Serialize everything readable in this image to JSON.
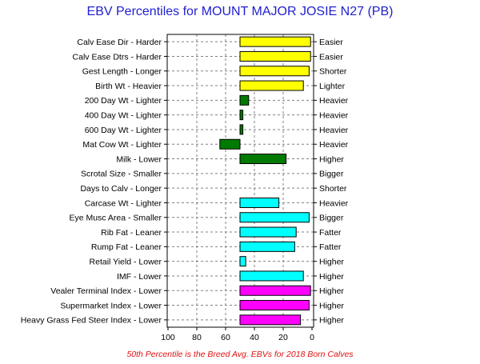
{
  "chart_data": {
    "type": "bar",
    "title": "EBV Percentiles for MOUNT MAJOR JOSIE N27 (PB)",
    "footnote": "50th Percentile is the Breed Avg. EBVs for 2018 Born Calves",
    "x_ticks": [
      "100",
      "80",
      "60",
      "40",
      "20",
      "0"
    ],
    "xlim": [
      100,
      0
    ],
    "grid": true,
    "baseline": 50,
    "colors": {
      "yellow": "#ffff00",
      "green": "#007a00",
      "cyan": "#00ffff",
      "magenta": "#ff00ff"
    },
    "bars": [
      {
        "category": "Calv Ease Dir - Harder",
        "right_label": "Easier",
        "value": 1,
        "color": "yellow"
      },
      {
        "category": "Calv Ease Dtrs - Harder",
        "right_label": "Easier",
        "value": 1,
        "color": "yellow"
      },
      {
        "category": "Gest Length - Longer",
        "right_label": "Shorter",
        "value": 2,
        "color": "yellow"
      },
      {
        "category": "Birth Wt - Heavier",
        "right_label": "Lighter",
        "value": 6,
        "color": "yellow"
      },
      {
        "category": "200 Day Wt - Lighter",
        "right_label": "Heavier",
        "value": 44,
        "color": "green"
      },
      {
        "category": "400 Day Wt - Lighter",
        "right_label": "Heavier",
        "value": 48,
        "color": "green"
      },
      {
        "category": "600 Day Wt - Lighter",
        "right_label": "Heavier",
        "value": 48,
        "color": "green"
      },
      {
        "category": "Mat Cow Wt - Lighter",
        "right_label": "Heavier",
        "value": 64,
        "color": "green"
      },
      {
        "category": "Milk - Lower",
        "right_label": "Higher",
        "value": 18,
        "color": "green"
      },
      {
        "category": "Scrotal Size - Smaller",
        "right_label": "Bigger",
        "value": null,
        "color": "green"
      },
      {
        "category": "Days to Calv - Longer",
        "right_label": "Shorter",
        "value": null,
        "color": "green"
      },
      {
        "category": "Carcase Wt - Lighter",
        "right_label": "Heavier",
        "value": 23,
        "color": "cyan"
      },
      {
        "category": "Eye Musc Area - Smaller",
        "right_label": "Bigger",
        "value": 2,
        "color": "cyan"
      },
      {
        "category": "Rib Fat - Leaner",
        "right_label": "Fatter",
        "value": 11,
        "color": "cyan"
      },
      {
        "category": "Rump Fat - Leaner",
        "right_label": "Fatter",
        "value": 12,
        "color": "cyan"
      },
      {
        "category": "Retail Yield - Lower",
        "right_label": "Higher",
        "value": 46,
        "color": "cyan"
      },
      {
        "category": "IMF - Lower",
        "right_label": "Higher",
        "value": 6,
        "color": "cyan"
      },
      {
        "category": "Vealer Terminal Index - Lower",
        "right_label": "Higher",
        "value": 1,
        "color": "magenta"
      },
      {
        "category": "Supermarket Index - Lower",
        "right_label": "Higher",
        "value": 2,
        "color": "magenta"
      },
      {
        "category": "Heavy Grass Fed Steer Index - Lower",
        "right_label": "Higher",
        "value": 8,
        "color": "magenta"
      }
    ]
  }
}
